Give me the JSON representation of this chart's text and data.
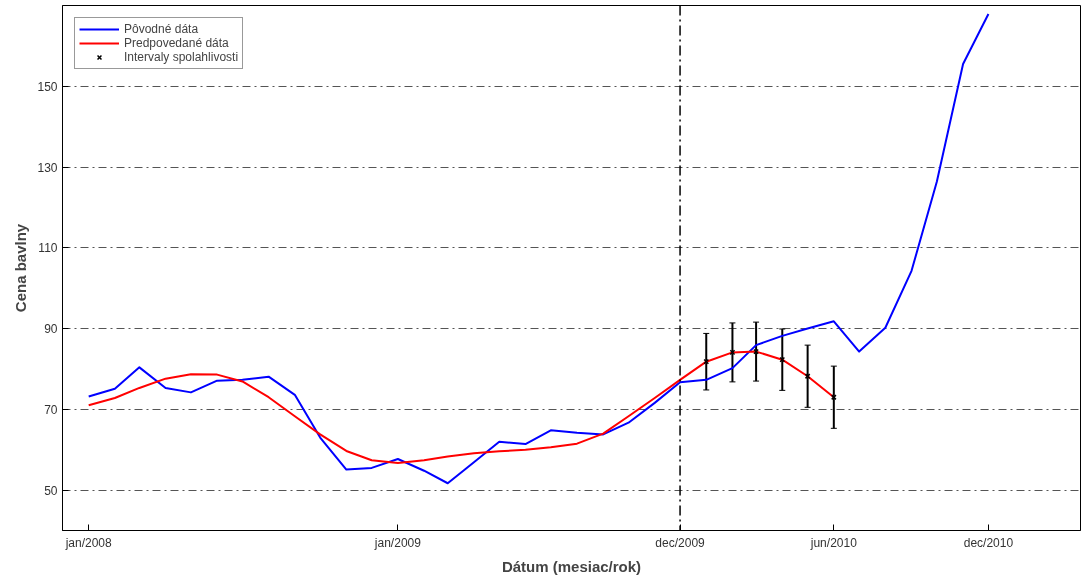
{
  "chart_data": {
    "type": "line",
    "xlabel": "Dátum (mesiac/rok)",
    "ylabel": "Cena bavlny",
    "x": [
      "2008-01",
      "2008-02",
      "2008-03",
      "2008-04",
      "2008-05",
      "2008-06",
      "2008-07",
      "2008-08",
      "2008-09",
      "2008-10",
      "2008-11",
      "2008-12",
      "2009-01",
      "2009-02",
      "2009-03",
      "2009-04",
      "2009-05",
      "2009-06",
      "2009-07",
      "2009-08",
      "2009-09",
      "2009-10",
      "2009-11",
      "2009-12",
      "2010-01",
      "2010-02",
      "2010-03",
      "2010-04",
      "2010-05",
      "2010-06",
      "2010-07",
      "2010-08",
      "2010-09",
      "2010-10",
      "2010-11",
      "2010-12"
    ],
    "series": [
      {
        "name": "Pôvodné dáta",
        "color": "#0000ff",
        "values": [
          73.2,
          75.1,
          80.4,
          75.3,
          74.2,
          77.1,
          77.3,
          78.1,
          73.6,
          63.0,
          55.1,
          55.5,
          57.7,
          54.8,
          51.7,
          56.9,
          62.0,
          61.4,
          64.8,
          64.2,
          63.8,
          66.7,
          71.6,
          76.7,
          77.3,
          80.2,
          85.9,
          88.2,
          90.0,
          91.8,
          84.3,
          90.2,
          104.3,
          126.4,
          155.5,
          167.9
        ]
      },
      {
        "name": "Predpovedané dáta",
        "color": "#ff0000",
        "x": [
          "2008-01",
          "2008-02",
          "2008-03",
          "2008-04",
          "2008-05",
          "2008-06",
          "2008-07",
          "2008-08",
          "2008-09",
          "2008-10",
          "2008-11",
          "2008-12",
          "2009-01",
          "2009-02",
          "2009-03",
          "2009-04",
          "2009-05",
          "2009-06",
          "2009-07",
          "2009-08",
          "2009-09",
          "2009-10",
          "2009-11",
          "2009-12",
          "2010-01",
          "2010-02",
          "2010-03",
          "2010-04",
          "2010-05",
          "2010-06"
        ],
        "values": [
          71.0,
          72.8,
          75.3,
          77.6,
          78.7,
          78.6,
          76.9,
          73.0,
          68.3,
          63.8,
          59.7,
          57.4,
          56.7,
          57.4,
          58.3,
          59.1,
          59.6,
          60.0,
          60.6,
          61.5,
          64.0,
          68.3,
          72.8,
          77.3,
          81.8,
          84.1,
          84.3,
          82.3,
          78.2,
          73.0
        ]
      },
      {
        "name": "Intervaly spolahlivosti",
        "type": "scatter",
        "marker": "cross",
        "color": "#000000",
        "x": [
          "2010-01",
          "2010-02",
          "2010-03",
          "2010-04",
          "2010-05",
          "2010-06"
        ],
        "values": [
          81.8,
          84.1,
          84.3,
          82.3,
          78.2,
          73.0
        ],
        "errors": [
          7,
          7.3,
          7.3,
          7.6,
          7.7,
          7.7
        ]
      }
    ],
    "xlim": [
      "2007-12",
      "2011-03-20"
    ],
    "xticks": [
      {
        "value": "2008-01",
        "label": "jan/2008"
      },
      {
        "value": "2009-01",
        "label": "jan/2009"
      },
      {
        "value": "2009-12",
        "label": "dec/2009"
      },
      {
        "value": "2010-06",
        "label": "jun/2010"
      },
      {
        "value": "2010-12",
        "label": "dec/2010"
      }
    ],
    "ylim": [
      40,
      170
    ],
    "yticks": [
      50,
      70,
      90,
      110,
      130,
      150
    ],
    "ref_lines": [
      {
        "axis": "x",
        "value": "2009-12",
        "color": "#000000"
      }
    ],
    "grid": "y",
    "legend": "top left"
  }
}
